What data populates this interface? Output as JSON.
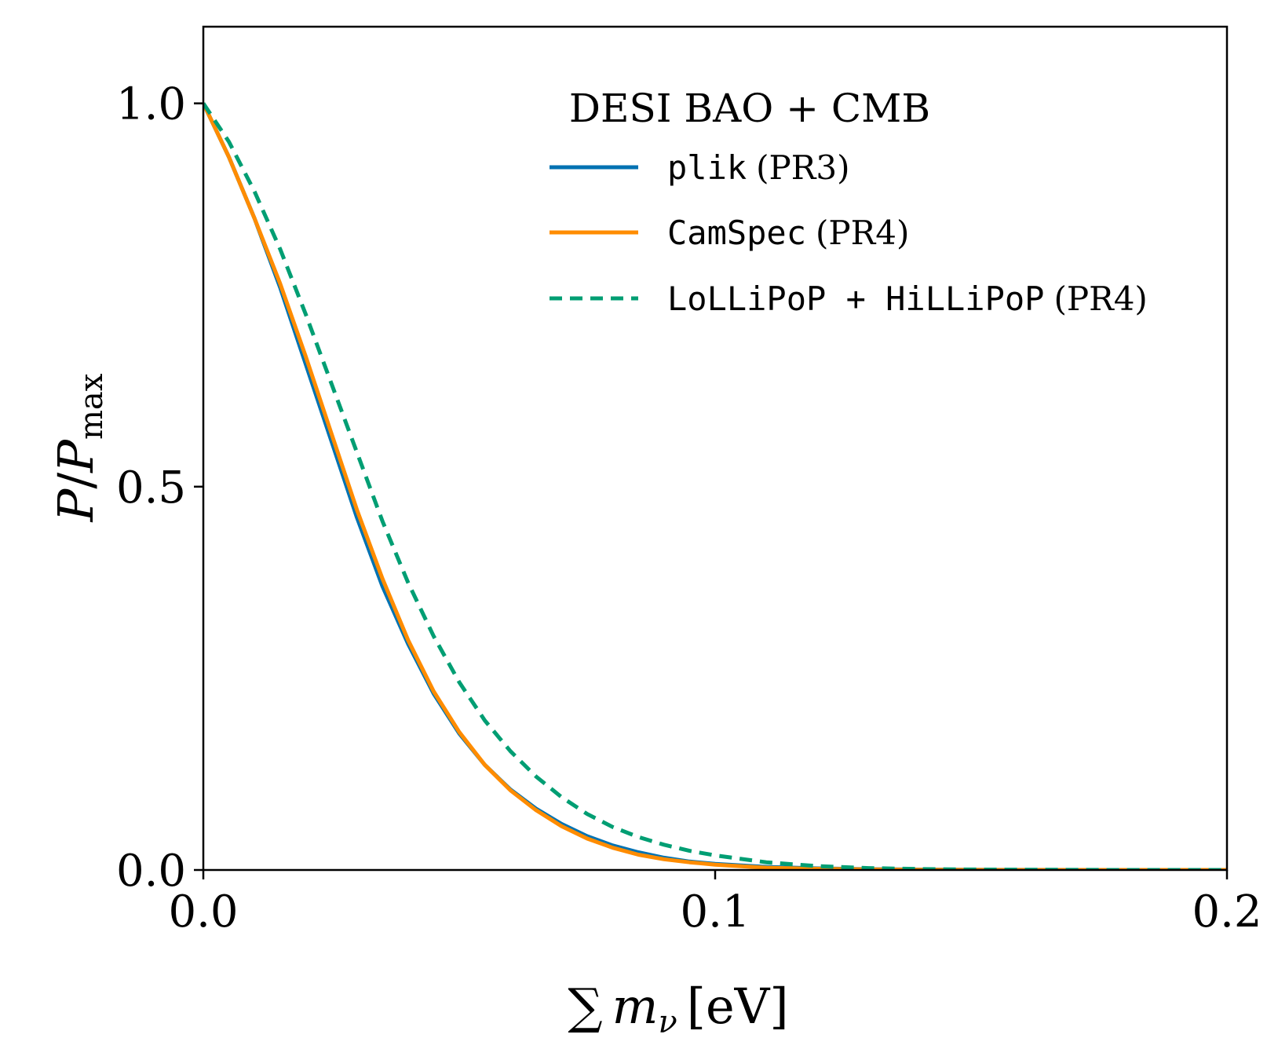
{
  "chart_data": {
    "type": "line",
    "title": "",
    "xlabel": {
      "prefix": "∑",
      "var": "m",
      "sub": "ν",
      "unit": "[eV]"
    },
    "ylabel": {
      "num": "P",
      "den": "P",
      "den_sub": "max"
    },
    "xlim": [
      0.0,
      0.2
    ],
    "ylim": [
      0.0,
      1.1
    ],
    "xticks": [
      {
        "value": 0.0,
        "label": "0.0"
      },
      {
        "value": 0.1,
        "label": "0.1"
      },
      {
        "value": 0.2,
        "label": "0.2"
      }
    ],
    "yticks": [
      {
        "value": 0.0,
        "label": "0.0"
      },
      {
        "value": 0.5,
        "label": "0.5"
      },
      {
        "value": 1.0,
        "label": "1.0"
      }
    ],
    "grid": false,
    "legend": {
      "title": "DESI BAO + CMB",
      "location": "top-right",
      "entries": [
        {
          "code": "plik",
          "suffix": "(PR3)"
        },
        {
          "code": "CamSpec",
          "suffix": "(PR4)"
        },
        {
          "code": "LoLLiPoP + HiLLiPoP",
          "suffix": "(PR4)"
        }
      ]
    },
    "series": [
      {
        "name": "plik (PR3)",
        "color": "#0072b2",
        "dash": "solid",
        "x": [
          0.0,
          0.005,
          0.01,
          0.015,
          0.02,
          0.025,
          0.03,
          0.035,
          0.04,
          0.045,
          0.05,
          0.055,
          0.06,
          0.065,
          0.07,
          0.075,
          0.08,
          0.085,
          0.09,
          0.095,
          0.1,
          0.11,
          0.12,
          0.13,
          0.14,
          0.15,
          0.16,
          0.18,
          0.2
        ],
        "y": [
          1.0,
          0.93,
          0.85,
          0.76,
          0.66,
          0.56,
          0.46,
          0.37,
          0.295,
          0.23,
          0.178,
          0.137,
          0.105,
          0.08,
          0.06,
          0.044,
          0.032,
          0.023,
          0.016,
          0.011,
          0.008,
          0.004,
          0.002,
          0.001,
          0.0005,
          0.0002,
          0.0001,
          0.0,
          0.0
        ]
      },
      {
        "name": "CamSpec (PR4)",
        "color": "#ff8c00",
        "dash": "solid",
        "x": [
          0.0,
          0.005,
          0.01,
          0.015,
          0.02,
          0.025,
          0.03,
          0.035,
          0.04,
          0.045,
          0.05,
          0.055,
          0.06,
          0.065,
          0.07,
          0.075,
          0.08,
          0.085,
          0.09,
          0.095,
          0.1,
          0.11,
          0.12,
          0.13,
          0.14,
          0.15,
          0.16,
          0.18,
          0.2
        ],
        "y": [
          1.0,
          0.93,
          0.85,
          0.765,
          0.67,
          0.57,
          0.47,
          0.38,
          0.3,
          0.233,
          0.18,
          0.137,
          0.104,
          0.078,
          0.057,
          0.041,
          0.029,
          0.02,
          0.014,
          0.01,
          0.007,
          0.003,
          0.0015,
          0.0007,
          0.0003,
          0.0001,
          0.0,
          0.0,
          0.0
        ]
      },
      {
        "name": "LoLLiPoP + HiLLiPoP (PR4)",
        "color": "#009e73",
        "dash": "dashed",
        "x": [
          0.0,
          0.005,
          0.01,
          0.015,
          0.02,
          0.025,
          0.03,
          0.035,
          0.04,
          0.045,
          0.05,
          0.055,
          0.06,
          0.065,
          0.07,
          0.075,
          0.08,
          0.085,
          0.09,
          0.095,
          0.1,
          0.11,
          0.12,
          0.13,
          0.14,
          0.15,
          0.16,
          0.18,
          0.2
        ],
        "y": [
          1.0,
          0.95,
          0.885,
          0.81,
          0.725,
          0.635,
          0.545,
          0.455,
          0.375,
          0.305,
          0.245,
          0.195,
          0.155,
          0.122,
          0.095,
          0.073,
          0.056,
          0.043,
          0.033,
          0.025,
          0.019,
          0.01,
          0.005,
          0.0025,
          0.0012,
          0.0006,
          0.0003,
          0.0,
          0.0
        ]
      }
    ]
  }
}
